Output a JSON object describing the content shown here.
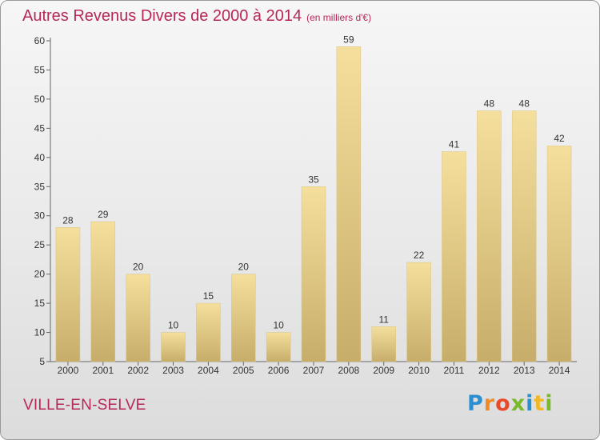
{
  "header": {
    "title": "Autres Revenus Divers de 2000 à 2014",
    "unit": "(en milliers d'€)"
  },
  "footer": {
    "place": "VILLE-EN-SELVE",
    "logo": "Proxiti"
  },
  "colors": {
    "title": "#b5285a",
    "bar_light": "#f5df9c",
    "bar_dark": "#c7ad6a",
    "logo_letters": [
      "#2a8fd0",
      "#f08a24",
      "#e84a2a",
      "#7ab82e",
      "#2a8fd0",
      "#f0b824",
      "#7ab82e"
    ]
  },
  "chart_data": {
    "type": "bar",
    "title": "Autres Revenus Divers de 2000 à 2014",
    "xlabel": "",
    "ylabel": "",
    "categories": [
      "2000",
      "2001",
      "2002",
      "2003",
      "2004",
      "2005",
      "2006",
      "2007",
      "2008",
      "2009",
      "2010",
      "2011",
      "2012",
      "2013",
      "2014"
    ],
    "values": [
      28,
      29,
      20,
      10,
      15,
      20,
      10,
      35,
      59,
      11,
      22,
      41,
      48,
      48,
      42
    ],
    "ylim": [
      5,
      60
    ],
    "yticks": [
      5,
      10,
      15,
      20,
      25,
      30,
      35,
      40,
      45,
      50,
      55,
      60
    ],
    "grid": false,
    "data_labels": true
  }
}
